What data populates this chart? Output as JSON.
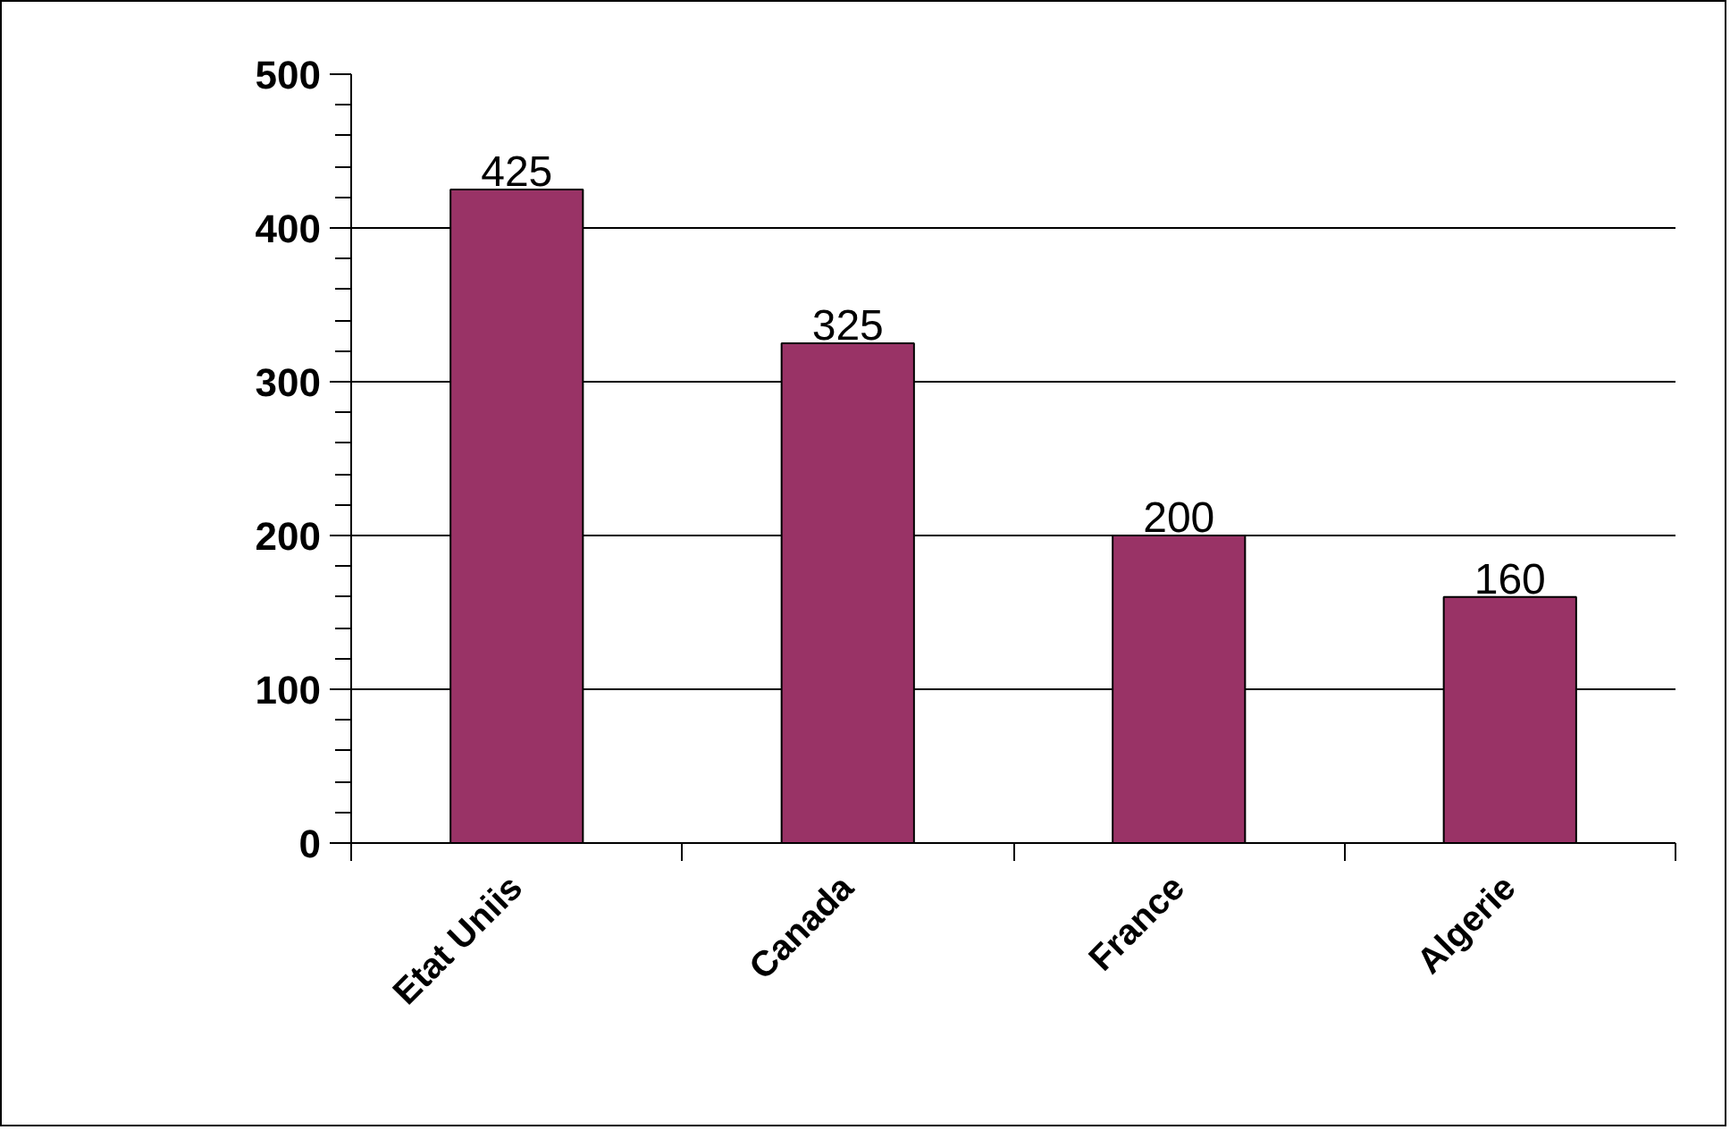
{
  "chart_data": {
    "type": "bar",
    "categories": [
      "Etat Uniis",
      "Canada",
      "France",
      "Algerie"
    ],
    "values": [
      425,
      325,
      200,
      160
    ],
    "color": "#993366",
    "ylim": [
      0,
      500
    ],
    "yticks": [
      0,
      {
        "value": 20,
        "label": null
      },
      {
        "value": 40,
        "label": null
      },
      {
        "value": 60,
        "label": null
      },
      {
        "value": 80,
        "label": null
      },
      100,
      {
        "value": 120,
        "label": null
      },
      {
        "value": 140,
        "label": null
      },
      {
        "value": 160,
        "label": null
      },
      {
        "value": 180,
        "label": null
      },
      200,
      {
        "value": 220,
        "label": null
      },
      {
        "value": 240,
        "label": null
      },
      {
        "value": 260,
        "label": null
      },
      {
        "value": 280,
        "label": null
      },
      300,
      {
        "value": 320,
        "label": null
      },
      {
        "value": 340,
        "label": null
      },
      {
        "value": 360,
        "label": null
      },
      {
        "value": 380,
        "label": null
      },
      400,
      {
        "value": 420,
        "label": null
      },
      {
        "value": 440,
        "label": null
      },
      {
        "value": 460,
        "label": null
      },
      {
        "value": 480,
        "label": null
      },
      500
    ],
    "grid": "y",
    "data_labels": true
  }
}
